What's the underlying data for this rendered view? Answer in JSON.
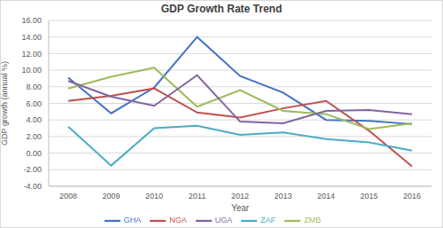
{
  "chart_data": {
    "type": "line",
    "title": "GDP Growth Rate Trend",
    "x_label": "Year",
    "y_label": "GDP growth (annual %)",
    "categories": [
      "2008",
      "2009",
      "2010",
      "2011",
      "2012",
      "2013",
      "2014",
      "2015",
      "2016"
    ],
    "series": [
      {
        "name": "GHA",
        "color": "#4472c4",
        "values": [
          9.1,
          4.8,
          7.9,
          14.0,
          9.3,
          7.3,
          4.0,
          3.9,
          3.5
        ]
      },
      {
        "name": "NGA",
        "color": "#c0504d",
        "values": [
          6.3,
          6.9,
          7.8,
          4.9,
          4.3,
          5.4,
          6.3,
          2.7,
          -1.6
        ]
      },
      {
        "name": "ZMB",
        "color": "#9bbb59",
        "values": [
          7.8,
          9.2,
          10.3,
          5.6,
          7.6,
          5.1,
          4.7,
          2.9,
          3.6
        ]
      },
      {
        "name": "UGA",
        "color": "#8064a2",
        "values": [
          8.7,
          6.8,
          5.7,
          9.4,
          3.8,
          3.6,
          5.1,
          5.2,
          4.7
        ]
      },
      {
        "name": "ZAF",
        "color": "#4bacc6",
        "values": [
          3.2,
          -1.5,
          3.0,
          3.3,
          2.2,
          2.5,
          1.7,
          1.3,
          0.3
        ]
      }
    ],
    "ylim": [
      -4,
      16
    ],
    "yticks": [
      {
        "value": -4,
        "label": "-4.00"
      },
      {
        "value": -2,
        "label": "-2.00"
      },
      {
        "value": 0,
        "label": "0.00"
      },
      {
        "value": 2,
        "label": "2.00"
      },
      {
        "value": 4,
        "label": "4.00"
      },
      {
        "value": 6,
        "label": "6.00"
      },
      {
        "value": 8,
        "label": "8.00"
      },
      {
        "value": 10,
        "label": "10.00"
      },
      {
        "value": 12,
        "label": "12.00"
      },
      {
        "value": 14,
        "label": "14.00"
      },
      {
        "value": 16,
        "label": "16.00"
      }
    ],
    "grid": true,
    "legend": "bottom"
  }
}
